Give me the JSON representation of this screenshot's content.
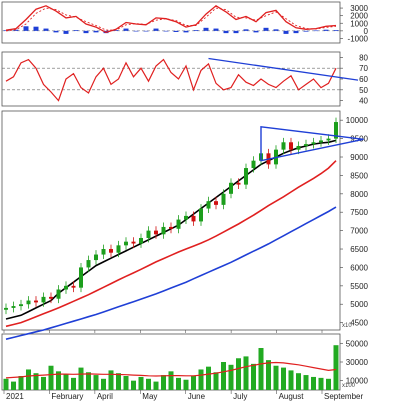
{
  "chart_data": [
    {
      "panel": "macd",
      "type": "line",
      "title": "",
      "y_ticks": [
        3000,
        2000,
        1000,
        0,
        -1000
      ],
      "ylim": [
        -1600,
        3800
      ],
      "series": [
        {
          "role": "macd-line",
          "color": "#e02020",
          "values": [
            80,
            300,
            1500,
            2850,
            3300,
            2600,
            1700,
            1900,
            900,
            500,
            -200,
            200,
            1100,
            900,
            800,
            1700,
            1600,
            1200,
            500,
            800,
            2200,
            3300,
            2500,
            1500,
            1900,
            1200,
            2400,
            2700,
            1200,
            400,
            200,
            300,
            600,
            700
          ]
        },
        {
          "role": "signal-line",
          "color": "#e02020",
          "values": [
            0,
            150,
            900,
            2300,
            3000,
            2800,
            2100,
            1800,
            1200,
            700,
            100,
            100,
            800,
            950,
            850,
            1400,
            1600,
            1350,
            700,
            700,
            1800,
            3000,
            2800,
            1800,
            1700,
            1400,
            2000,
            2500,
            1600,
            700,
            300,
            250,
            450,
            600
          ]
        },
        {
          "role": "histogram",
          "color": "#1f3fd6",
          "values": [
            80,
            150,
            600,
            550,
            300,
            -200,
            -400,
            100,
            -300,
            -200,
            -300,
            100,
            300,
            -50,
            -50,
            300,
            0,
            -150,
            -200,
            100,
            400,
            300,
            -300,
            -300,
            200,
            -200,
            400,
            200,
            -400,
            -300,
            -100,
            50,
            150,
            100
          ]
        }
      ]
    },
    {
      "panel": "rsi",
      "type": "line",
      "y_ticks": [
        80,
        70,
        60,
        50,
        40
      ],
      "ylim": [
        35,
        85
      ],
      "reference_lines": [
        70,
        50
      ],
      "series": [
        {
          "role": "rsi",
          "color": "#e02020",
          "values": [
            58,
            62,
            75,
            78,
            70,
            55,
            48,
            40,
            60,
            65,
            52,
            47,
            62,
            70,
            55,
            60,
            75,
            62,
            70,
            58,
            72,
            78,
            66,
            60,
            72,
            50,
            68,
            74,
            56,
            50,
            52,
            64,
            57,
            54,
            60,
            55,
            52,
            58,
            63,
            50,
            55,
            60,
            52,
            56,
            70
          ]
        }
      ],
      "trendline": {
        "color": "#1f3fd6",
        "from": {
          "index": 27,
          "value": 79
        },
        "to": {
          "index": 44,
          "value": 58
        }
      }
    },
    {
      "panel": "price",
      "type": "candlestick",
      "y_ticks": [
        10000,
        9500,
        9000,
        8500,
        8000,
        7500,
        7000,
        6500,
        6000,
        5500,
        5000,
        4500
      ],
      "ylim": [
        4300,
        10250
      ],
      "multiplier": "x10",
      "x_ticks": [
        "2021",
        "February",
        "April",
        "May",
        "June",
        "July",
        "August",
        "September"
      ],
      "close": [
        4900,
        4950,
        5000,
        5100,
        5050,
        5200,
        5150,
        5400,
        5500,
        5450,
        6000,
        6200,
        6350,
        6500,
        6400,
        6600,
        6700,
        6650,
        6800,
        7000,
        6900,
        7100,
        7050,
        7300,
        7400,
        7250,
        7600,
        7800,
        7700,
        8000,
        8300,
        8250,
        8700,
        8900,
        9100,
        8800,
        9200,
        9400,
        9200,
        9300,
        9350,
        9400,
        9450,
        9500,
        9950
      ],
      "moving_averages": [
        {
          "color": "#000000",
          "values": [
            4600,
            4650,
            4700,
            4800,
            4900,
            5000,
            5100,
            5300,
            5450,
            5600,
            5750,
            5900,
            6050,
            6150,
            6250,
            6350,
            6450,
            6550,
            6650,
            6750,
            6850,
            6950,
            7050,
            7150,
            7300,
            7450,
            7600,
            7750,
            7900,
            8050,
            8200,
            8350,
            8500,
            8650,
            8800,
            8900,
            9000,
            9100,
            9180,
            9250,
            9300,
            9350,
            9380,
            9400,
            9450
          ]
        },
        {
          "color": "#e02020",
          "values": [
            4400,
            4450,
            4500,
            4580,
            4660,
            4740,
            4820,
            4900,
            4990,
            5080,
            5170,
            5260,
            5360,
            5460,
            5560,
            5660,
            5760,
            5850,
            5950,
            6050,
            6150,
            6240,
            6330,
            6420,
            6500,
            6580,
            6660,
            6750,
            6850,
            6960,
            7070,
            7180,
            7300,
            7420,
            7550,
            7680,
            7800,
            7920,
            8050,
            8180,
            8300,
            8420,
            8550,
            8700,
            8900
          ]
        },
        {
          "color": "#1f3fd6",
          "values": [
            4050,
            4100,
            4150,
            4200,
            4250,
            4300,
            4360,
            4420,
            4480,
            4540,
            4600,
            4660,
            4720,
            4790,
            4860,
            4930,
            5000,
            5070,
            5140,
            5210,
            5280,
            5360,
            5440,
            5520,
            5600,
            5690,
            5780,
            5870,
            5960,
            6050,
            6140,
            6240,
            6340,
            6440,
            6540,
            6640,
            6750,
            6860,
            6970,
            7080,
            7190,
            7300,
            7410,
            7520,
            7640
          ]
        }
      ],
      "triangle_pattern": {
        "color": "#1f3fd6",
        "upper_start": {
          "index": 34,
          "value": 9820
        },
        "lower_start": {
          "index": 34,
          "value": 8900
        },
        "apex": {
          "index": 45,
          "value": 9480
        }
      }
    },
    {
      "panel": "volume",
      "type": "bar",
      "y_ticks": [
        50000,
        30000,
        10000
      ],
      "ylim": [
        0,
        60000
      ],
      "multiplier": "x100",
      "bar_color": "#22aa22",
      "values": [
        12000,
        9000,
        15000,
        22000,
        18000,
        14000,
        26000,
        20000,
        17000,
        13000,
        24000,
        19000,
        16000,
        12000,
        21000,
        18000,
        15000,
        10000,
        14000,
        12000,
        9000,
        16000,
        20000,
        13000,
        11000,
        15000,
        22000,
        25000,
        19000,
        30000,
        27000,
        34000,
        36000,
        28000,
        45000,
        32000,
        26000,
        24000,
        21000,
        18000,
        16000,
        14000,
        13000,
        12000,
        48000
      ],
      "moving_average": {
        "color": "#e02020",
        "values": [
          13000,
          13500,
          14000,
          15000,
          15500,
          16000,
          16500,
          17000,
          17000,
          16800,
          17000,
          17200,
          17000,
          16800,
          16800,
          16600,
          16400,
          16000,
          15600,
          15200,
          15000,
          15200,
          15400,
          15400,
          15200,
          15200,
          16000,
          17000,
          18000,
          19500,
          21000,
          23000,
          25000,
          26500,
          28000,
          29000,
          29500,
          29000,
          28000,
          27000,
          25500,
          24000,
          22500,
          21000,
          22000
        ]
      }
    }
  ]
}
